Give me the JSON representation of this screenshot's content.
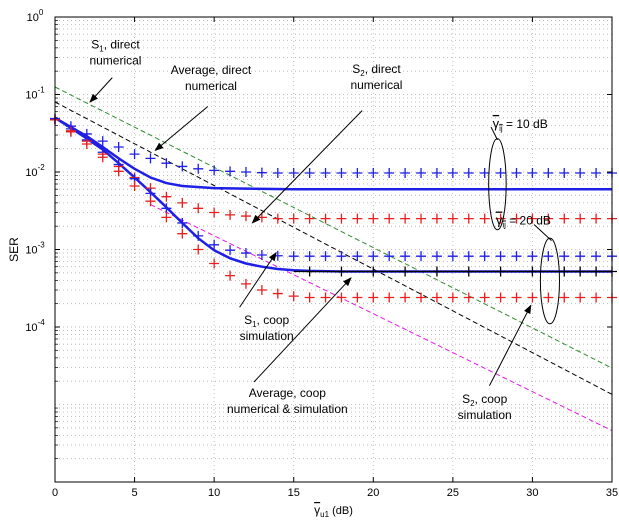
{
  "chart_data": {
    "type": "line",
    "xlabel": "γ",
    "xlabel_sub": "u1",
    "xlabel_unit": " (dB)",
    "ylabel": "SER",
    "xlim": [
      0,
      35
    ],
    "ylim_log10": [
      -6,
      0
    ],
    "yscale": "log",
    "grid": true,
    "x_ticks": [
      0,
      5,
      10,
      15,
      20,
      25,
      30,
      35
    ],
    "y_ticks": [
      {
        "base": "10",
        "exp": "0",
        "logv": 0
      },
      {
        "base": "10",
        "exp": "-1",
        "logv": -1
      },
      {
        "base": "10",
        "exp": "-2",
        "logv": -2
      },
      {
        "base": "10",
        "exp": "-3",
        "logv": -3
      },
      {
        "base": "10",
        "exp": "-4",
        "logv": -4
      }
    ],
    "colors": {
      "blue": "#1f1fe6",
      "black": "#000000",
      "red": "#e81f1f",
      "green": "#2e8b2e",
      "magenta": "#e619e6"
    },
    "series": [
      {
        "key": "s1_direct",
        "color": "#000000",
        "style": "dashed",
        "x": [
          0,
          35
        ],
        "y": [
          0.08,
          1.35e-05
        ]
      },
      {
        "key": "avg_direct",
        "color": "#2e8b2e",
        "style": "dashed",
        "x": [
          0,
          35
        ],
        "y": [
          0.125,
          2.95e-05
        ]
      },
      {
        "key": "s2_direct",
        "color": "#e619e6",
        "style": "dashed",
        "x": [
          6,
          35
        ],
        "y": [
          0.0038,
          4.6e-06
        ]
      },
      {
        "key": "avg_coop_10",
        "color": "#1f1fe6",
        "style": "solid",
        "width": 2.5,
        "x": [
          0,
          1,
          2,
          3,
          4,
          5,
          6,
          7,
          8,
          10,
          12,
          15,
          20,
          25,
          30,
          35
        ],
        "y": [
          0.05,
          0.038,
          0.029,
          0.021,
          0.015,
          0.011,
          0.0085,
          0.0072,
          0.0066,
          0.0062,
          0.0061,
          0.006,
          0.006,
          0.006,
          0.006,
          0.006
        ]
      },
      {
        "key": "avg_coop_20",
        "color": "#1f1fe6",
        "style": "solid",
        "width": 2.5,
        "x": [
          0,
          1,
          2,
          3,
          4,
          5,
          6,
          7,
          8,
          9,
          10,
          11,
          12,
          13,
          14,
          15,
          16,
          18,
          20,
          25,
          30,
          35
        ],
        "y": [
          0.05,
          0.037,
          0.027,
          0.0195,
          0.013,
          0.0085,
          0.0055,
          0.0035,
          0.0022,
          0.0014,
          0.00098,
          0.00077,
          0.00066,
          0.0006,
          0.00056,
          0.00054,
          0.00053,
          0.00052,
          0.00052,
          0.00052,
          0.00052,
          0.00052
        ]
      },
      {
        "key": "avg_coop_20_tail",
        "color": "#000000",
        "style": "solid",
        "width": 1.2,
        "x": [
          15,
          35
        ],
        "y": [
          0.00052,
          0.00052
        ]
      }
    ],
    "markers": [
      {
        "key": "s1_coop_10",
        "color": "#1f1fe6",
        "x": [
          0,
          1,
          2,
          3,
          4,
          5,
          6,
          7,
          8,
          9,
          10,
          11,
          12,
          13,
          14,
          15,
          16,
          17,
          18,
          19,
          20,
          21,
          22,
          23,
          24,
          25,
          26,
          27,
          28,
          29,
          30,
          31,
          32,
          33,
          34,
          35
        ],
        "y": [
          0.049,
          0.039,
          0.031,
          0.025,
          0.021,
          0.017,
          0.015,
          0.013,
          0.0118,
          0.011,
          0.0105,
          0.0102,
          0.01,
          0.0098,
          0.0097,
          0.0097,
          0.0097,
          0.0097,
          0.0097,
          0.0097,
          0.0097,
          0.0097,
          0.0097,
          0.0097,
          0.0097,
          0.0097,
          0.0097,
          0.0097,
          0.0097,
          0.0097,
          0.0097,
          0.0097,
          0.0097,
          0.0097,
          0.0097,
          0.0097
        ]
      },
      {
        "key": "s2_coop_10",
        "color": "#e81f1f",
        "x": [
          0,
          1,
          2,
          3,
          4,
          5,
          6,
          7,
          8,
          9,
          10,
          11,
          12,
          13,
          14,
          15,
          16,
          17,
          18,
          19,
          20,
          21,
          22,
          23,
          24,
          25,
          26,
          27,
          28,
          29,
          30,
          31,
          32,
          33,
          34,
          35
        ],
        "y": [
          0.048,
          0.034,
          0.025,
          0.017,
          0.0118,
          0.0085,
          0.0062,
          0.0048,
          0.004,
          0.0034,
          0.003,
          0.0028,
          0.0027,
          0.0026,
          0.0025,
          0.0025,
          0.0025,
          0.0025,
          0.0025,
          0.0025,
          0.0025,
          0.0025,
          0.0025,
          0.0025,
          0.0025,
          0.0025,
          0.0025,
          0.0025,
          0.0025,
          0.0025,
          0.0025,
          0.0025,
          0.0025,
          0.0025,
          0.0025,
          0.0025
        ]
      },
      {
        "key": "s1_coop_20",
        "color": "#1f1fe6",
        "x": [
          0,
          1,
          2,
          3,
          4,
          5,
          6,
          7,
          8,
          9,
          10,
          11,
          12,
          13,
          14,
          15,
          16,
          17,
          18,
          19,
          20,
          21,
          22,
          23,
          24,
          25,
          26,
          27,
          28,
          29,
          30,
          31,
          32,
          33,
          34,
          35
        ],
        "y": [
          0.048,
          0.036,
          0.026,
          0.018,
          0.0125,
          0.0082,
          0.0053,
          0.0034,
          0.0022,
          0.0015,
          0.00115,
          0.00098,
          0.0009,
          0.00085,
          0.00083,
          0.00082,
          0.00082,
          0.00082,
          0.00082,
          0.00082,
          0.00082,
          0.00082,
          0.00082,
          0.00082,
          0.00082,
          0.00082,
          0.00082,
          0.00082,
          0.00082,
          0.00082,
          0.00082,
          0.00082,
          0.00082,
          0.00082,
          0.00082,
          0.00082
        ]
      },
      {
        "key": "avg_coop_20_sim",
        "color": "#000000",
        "x": [
          16,
          18,
          20,
          22,
          24,
          26,
          28,
          30,
          32,
          33,
          34,
          35
        ],
        "y": [
          0.00052,
          0.00052,
          0.00052,
          0.00052,
          0.00052,
          0.00052,
          0.00052,
          0.00052,
          0.00052,
          0.00052,
          0.00052,
          0.00052
        ]
      },
      {
        "key": "s2_coop_20",
        "color": "#e81f1f",
        "x": [
          0,
          1,
          2,
          3,
          4,
          5,
          6,
          7,
          8,
          9,
          10,
          11,
          12,
          13,
          14,
          15,
          16,
          17,
          18,
          19,
          20,
          21,
          22,
          23,
          24,
          25,
          26,
          27,
          28,
          29,
          30,
          31,
          32,
          33,
          34,
          35
        ],
        "y": [
          0.047,
          0.033,
          0.023,
          0.0155,
          0.0102,
          0.0066,
          0.0042,
          0.0026,
          0.0016,
          0.001,
          0.00066,
          0.00046,
          0.00036,
          0.0003,
          0.00027,
          0.00025,
          0.00024,
          0.00024,
          0.00024,
          0.00024,
          0.00024,
          0.00024,
          0.00024,
          0.00024,
          0.00024,
          0.00024,
          0.00024,
          0.00024,
          0.00024,
          0.00024,
          0.00024,
          0.00024,
          0.00024,
          0.00024,
          0.00024,
          0.00024
        ]
      }
    ],
    "annotations": [
      {
        "key": "s1_direct_label",
        "lines": [
          {
            "main": "S",
            "sub": "1",
            "rest": ", direct"
          },
          {
            "main": "numerical"
          }
        ],
        "tx": 3.8,
        "ty": 0.39,
        "arrow_from": [
          3.6,
          0.165
        ],
        "arrow_to": [
          2.2,
          0.08
        ]
      },
      {
        "key": "avg_direct_label",
        "lines": [
          {
            "main": "Average, direct"
          },
          {
            "main": "numerical"
          }
        ],
        "tx": 9.8,
        "ty": 0.185,
        "arrow_from": [
          9.6,
          0.07
        ],
        "arrow_to": [
          6.3,
          0.019
        ]
      },
      {
        "key": "s2_direct_label",
        "lines": [
          {
            "main": "S",
            "sub": "2",
            "rest": ", direct"
          },
          {
            "main": "numerical"
          }
        ],
        "tx": 20.2,
        "ty": 0.19,
        "arrow_from": [
          19.3,
          0.062
        ],
        "arrow_to": [
          12.4,
          0.0022
        ]
      },
      {
        "key": "s1_coop_label",
        "lines": [
          {
            "main": "S",
            "sub": "1",
            "rest": ", coop"
          },
          {
            "main": "simulation"
          }
        ],
        "tx": 13.3,
        "ty": 0.00011,
        "arrow_from": [
          11.6,
          0.00018
        ],
        "arrow_to": [
          13.9,
          0.00091
        ]
      },
      {
        "key": "avg_coop_label",
        "lines": [
          {
            "main": "Average, coop"
          },
          {
            "main": "numerical & simulation"
          }
        ],
        "tx": 14.6,
        "ty": 1.25e-05,
        "arrow_from": [
          12.5,
          1.95e-05
        ],
        "arrow_to": [
          18.6,
          0.00043
        ]
      },
      {
        "key": "s2_coop_label",
        "lines": [
          {
            "main": "S",
            "sub": "2",
            "rest": ", coop"
          },
          {
            "main": "simulation"
          }
        ],
        "tx": 27.0,
        "ty": 1.04e-05,
        "arrow_from": [
          27.3,
          1.75e-05
        ],
        "arrow_to": [
          29.9,
          0.00019
        ]
      },
      {
        "key": "gamma10_label",
        "gamma": true,
        "sub": "ij",
        "rest": " = 10 dB",
        "tx": 27.5,
        "ty": 0.037
      },
      {
        "key": "gamma20_label",
        "gamma": true,
        "sub": "ij",
        "rest": " = 20 dB",
        "tx": 27.7,
        "ty": 0.0021
      }
    ],
    "ellipses": [
      {
        "key": "ellipse_10db",
        "cx": 27.8,
        "cy_top": 0.027,
        "cy_bottom": 0.0018,
        "rx": 0.55
      },
      {
        "key": "ellipse_20db",
        "cx": 31.1,
        "cy_top": 0.0014,
        "cy_bottom": 0.00011,
        "rx": 0.6
      }
    ],
    "pointers": [
      {
        "key": "pointer_10db",
        "from": [
          27.8,
          0.026
        ],
        "to": [
          27.4,
          0.038
        ]
      },
      {
        "key": "pointer_20db",
        "from": [
          31.2,
          0.0013
        ],
        "to": [
          30.1,
          0.0021
        ]
      }
    ]
  }
}
